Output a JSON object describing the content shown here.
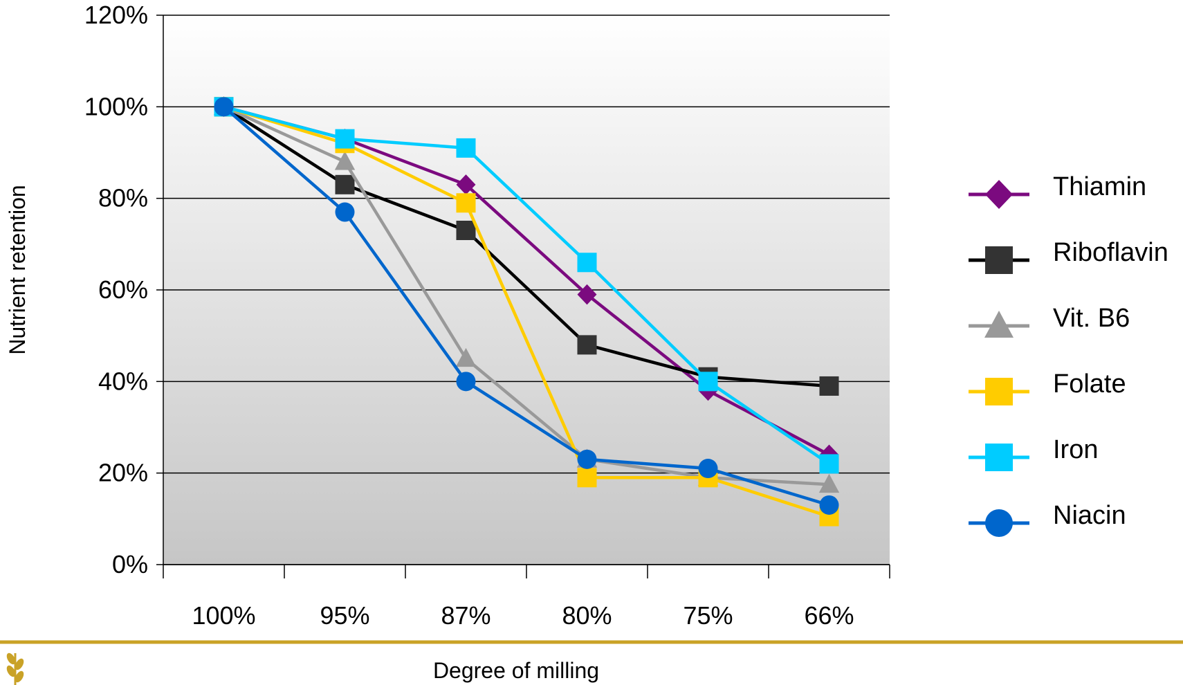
{
  "chart_data": {
    "type": "line",
    "title": "",
    "xlabel": "Degree of milling",
    "ylabel": "Nutrient retention",
    "categories": [
      "100%",
      "95%",
      "87%",
      "80%",
      "75%",
      "66%"
    ],
    "ylim": [
      0,
      120
    ],
    "yticks": [
      0,
      20,
      40,
      60,
      80,
      100,
      120
    ],
    "ytick_labels": [
      "0%",
      "20%",
      "40%",
      "60%",
      "80%",
      "100%",
      "120%"
    ],
    "grid": true,
    "legend_position": "right",
    "series": [
      {
        "name": "Thiamin",
        "color": "#7B0A7F",
        "marker": "diamond",
        "values": [
          100,
          93,
          83,
          59,
          38,
          24
        ]
      },
      {
        "name": "Riboflavin",
        "color": "#000000",
        "marker_color": "#333333",
        "marker": "square",
        "values": [
          100,
          83,
          73,
          48,
          41,
          39
        ]
      },
      {
        "name": "Vit. B6",
        "color": "#999999",
        "marker": "triangle",
        "values": [
          100,
          88,
          45,
          23,
          19,
          17.5
        ]
      },
      {
        "name": "Folate",
        "color": "#FFCC00",
        "marker": "square",
        "values": [
          100,
          92,
          79,
          19,
          19,
          10.5
        ]
      },
      {
        "name": "Iron",
        "color": "#00CCFF",
        "marker": "square",
        "values": [
          100,
          93,
          91,
          66,
          40,
          22
        ]
      },
      {
        "name": "Niacin",
        "color": "#0066CC",
        "marker": "circle",
        "values": [
          100,
          77,
          40,
          23,
          21,
          13
        ]
      }
    ]
  },
  "footer": {
    "divider_color": "#C9A227",
    "logo_icon": "wheat-icon"
  }
}
